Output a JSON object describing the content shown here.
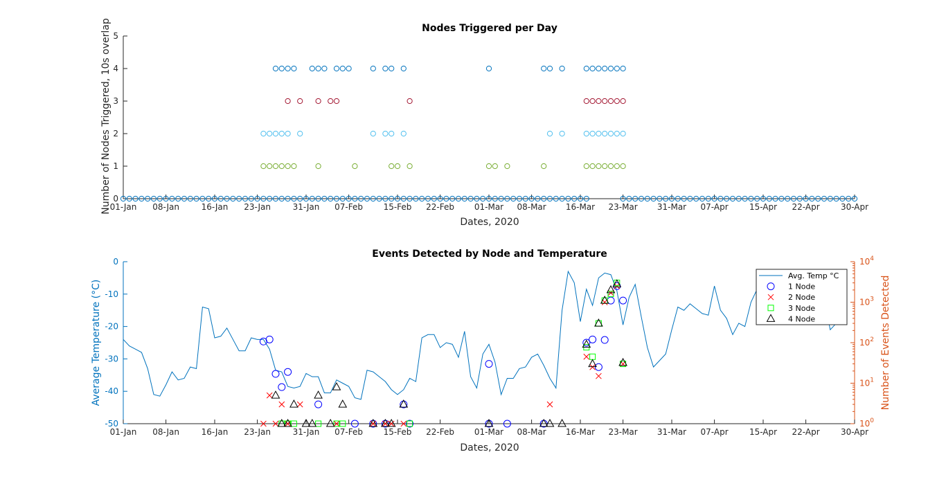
{
  "colors": {
    "axis": "#262626",
    "left_axis": "#0072BD",
    "right_axis": "#D95319",
    "n0": "#0072BD",
    "n1": "#77AC30",
    "n2": "#4DBEEE",
    "n3": "#A2142F",
    "n4": "#0072BD",
    "temp_line": "#0072BD",
    "node1": "#0000FF",
    "node2": "#FF0000",
    "node3": "#00FF00",
    "node4": "#000000"
  },
  "chart_data": [
    {
      "type": "scatter",
      "title": "Nodes Triggered per Day",
      "xlabel": "Dates, 2020",
      "ylabel": "Number of Nodes Triggered, 10s overlap",
      "xlim": [
        "2020-01-01",
        "2020-04-30"
      ],
      "ylim": [
        0,
        5
      ],
      "yticks": [
        "0",
        "1",
        "2",
        "3",
        "4",
        "5"
      ],
      "xticks": [
        {
          "date": "2020-01-01",
          "label": "01-Jan"
        },
        {
          "date": "2020-01-08",
          "label": "08-Jan"
        },
        {
          "date": "2020-01-16",
          "label": "16-Jan"
        },
        {
          "date": "2020-01-23",
          "label": "23-Jan"
        },
        {
          "date": "2020-01-31",
          "label": "31-Jan"
        },
        {
          "date": "2020-02-07",
          "label": "07-Feb"
        },
        {
          "date": "2020-02-15",
          "label": "15-Feb"
        },
        {
          "date": "2020-02-22",
          "label": "22-Feb"
        },
        {
          "date": "2020-03-01",
          "label": "01-Mar"
        },
        {
          "date": "2020-03-08",
          "label": "08-Mar"
        },
        {
          "date": "2020-03-16",
          "label": "16-Mar"
        },
        {
          "date": "2020-03-23",
          "label": "23-Mar"
        },
        {
          "date": "2020-03-31",
          "label": "31-Mar"
        },
        {
          "date": "2020-04-07",
          "label": "07-Apr"
        },
        {
          "date": "2020-04-15",
          "label": "15-Apr"
        },
        {
          "date": "2020-04-22",
          "label": "22-Apr"
        },
        {
          "date": "2020-04-30",
          "label": "30-Apr"
        }
      ],
      "series": [
        {
          "value": 4,
          "color_key": "n4",
          "dates": [
            "2020-01-26",
            "2020-01-27",
            "2020-01-28",
            "2020-01-29",
            "2020-02-01",
            "2020-02-02",
            "2020-02-03",
            "2020-02-05",
            "2020-02-06",
            "2020-02-07",
            "2020-02-11",
            "2020-02-13",
            "2020-02-14",
            "2020-02-16",
            "2020-03-01",
            "2020-03-10",
            "2020-03-11",
            "2020-03-13",
            "2020-03-17",
            "2020-03-18",
            "2020-03-19",
            "2020-03-20",
            "2020-03-21",
            "2020-03-22",
            "2020-03-23"
          ]
        },
        {
          "value": 3,
          "color_key": "n3",
          "dates": [
            "2020-01-28",
            "2020-01-30",
            "2020-02-02",
            "2020-02-04",
            "2020-02-05",
            "2020-02-17",
            "2020-03-17",
            "2020-03-18",
            "2020-03-19",
            "2020-03-20",
            "2020-03-21",
            "2020-03-22",
            "2020-03-23"
          ]
        },
        {
          "value": 2,
          "color_key": "n2",
          "dates": [
            "2020-01-24",
            "2020-01-25",
            "2020-01-26",
            "2020-01-27",
            "2020-01-28",
            "2020-01-30",
            "2020-02-11",
            "2020-02-13",
            "2020-02-14",
            "2020-02-16",
            "2020-03-11",
            "2020-03-13",
            "2020-03-17",
            "2020-03-18",
            "2020-03-19",
            "2020-03-20",
            "2020-03-21",
            "2020-03-22",
            "2020-03-23"
          ]
        },
        {
          "value": 1,
          "color_key": "n1",
          "dates": [
            "2020-01-24",
            "2020-01-25",
            "2020-01-26",
            "2020-01-27",
            "2020-01-28",
            "2020-01-29",
            "2020-02-02",
            "2020-02-08",
            "2020-02-14",
            "2020-02-15",
            "2020-02-17",
            "2020-03-01",
            "2020-03-02",
            "2020-03-04",
            "2020-03-10",
            "2020-03-17",
            "2020-03-18",
            "2020-03-19",
            "2020-03-20",
            "2020-03-21",
            "2020-03-22",
            "2020-03-23"
          ]
        }
      ],
      "zero_gap": [
        "2020-03-17",
        "2020-03-23"
      ]
    },
    {
      "type": "line",
      "title": "Events Detected by Node and Temperature",
      "xlabel": "Dates, 2020",
      "ylabel_left": "Average Temperature (°C)",
      "ylabel_right": "Number of Events Detected",
      "ylim_left": [
        -50,
        0
      ],
      "ylim_right": [
        1,
        10000
      ],
      "yscale_right": "log",
      "yticks_left": [
        "0",
        "-10",
        "-20",
        "-30",
        "-40",
        "-50"
      ],
      "yticks_right": [
        {
          "base": "10",
          "exp": "0"
        },
        {
          "base": "10",
          "exp": "1"
        },
        {
          "base": "10",
          "exp": "2"
        },
        {
          "base": "10",
          "exp": "3"
        },
        {
          "base": "10",
          "exp": "4"
        }
      ],
      "legend": {
        "position": "top-right",
        "entries": [
          {
            "label": "Avg. Temp °C",
            "marker": "line",
            "color_key": "temp_line"
          },
          {
            "label": "1 Node",
            "marker": "circle",
            "color_key": "node1"
          },
          {
            "label": "2 Node",
            "marker": "x",
            "color_key": "node2"
          },
          {
            "label": "3 Node",
            "marker": "square",
            "color_key": "node3"
          },
          {
            "label": "4 Node",
            "marker": "triangle",
            "color_key": "node4"
          }
        ]
      },
      "temperature": [
        -24,
        -26,
        -27,
        -28,
        -33,
        -41,
        -41.5,
        -38,
        -34,
        -36.5,
        -36,
        -32.5,
        -33,
        -14,
        -14.5,
        -23.5,
        -23,
        -20.5,
        -24,
        -27.5,
        -27.5,
        -23.5,
        -24,
        -24,
        -27,
        -33.5,
        -34,
        -38.5,
        -39,
        -38.5,
        -34.5,
        -35.5,
        -35.5,
        -40.5,
        -40.5,
        -36.5,
        -37.5,
        -38.5,
        -42,
        -42.5,
        -33.5,
        -34,
        -35.5,
        -37,
        -39.5,
        -41,
        -39.5,
        -36,
        -37,
        -23.5,
        -22.5,
        -22.5,
        -26.5,
        -25,
        -25.5,
        -29.5,
        -21.5,
        -35.5,
        -39,
        -28.5,
        -25.5,
        -31,
        -41,
        -36,
        -36,
        -33,
        -32.5,
        -29.5,
        -28.5,
        -32,
        -36,
        -39,
        -15,
        -3,
        -6.5,
        -18.5,
        -8.5,
        -13.5,
        -5,
        -3.5,
        -4,
        -9,
        -19.5,
        -11,
        -7,
        -17,
        -26.5,
        -32.5,
        -30.5,
        -28.5,
        -21,
        -14,
        -15,
        -13,
        -14.5,
        -16,
        -16.5,
        -7.5,
        -15,
        -17.5,
        -22.5,
        -19,
        -20,
        -12.5,
        -8.5,
        -7,
        -6,
        -5.5,
        -4.5,
        -4.5,
        -4,
        -5,
        -11.5,
        -15,
        -8,
        -11,
        -21,
        -19
      ],
      "events": {
        "node1": [
          [
            "2020-01-24",
            107
          ],
          [
            "2020-01-25",
            120
          ],
          [
            "2020-01-26",
            17
          ],
          [
            "2020-01-27",
            8
          ],
          [
            "2020-01-28",
            19
          ],
          [
            "2020-02-02",
            3
          ],
          [
            "2020-02-16",
            3
          ],
          [
            "2020-02-17",
            1
          ],
          [
            "2020-02-08",
            1
          ],
          [
            "2020-02-11",
            1
          ],
          [
            "2020-02-13",
            1
          ],
          [
            "2020-03-01",
            1
          ],
          [
            "2020-03-04",
            1
          ],
          [
            "2020-03-01",
            30
          ],
          [
            "2020-03-17",
            100
          ],
          [
            "2020-03-18",
            120
          ],
          [
            "2020-03-19",
            25
          ],
          [
            "2020-03-20",
            117
          ],
          [
            "2020-03-21",
            1100
          ],
          [
            "2020-03-22",
            2500
          ],
          [
            "2020-03-23",
            1100
          ],
          [
            "2020-03-10",
            1
          ]
        ],
        "node2": [
          [
            "2020-01-24",
            1
          ],
          [
            "2020-01-25",
            5
          ],
          [
            "2020-01-26",
            1
          ],
          [
            "2020-01-27",
            3
          ],
          [
            "2020-01-28",
            1
          ],
          [
            "2020-01-30",
            3
          ],
          [
            "2020-02-05",
            1
          ],
          [
            "2020-02-11",
            1
          ],
          [
            "2020-02-13",
            1
          ],
          [
            "2020-02-14",
            1
          ],
          [
            "2020-02-16",
            1
          ],
          [
            "2020-03-11",
            3
          ],
          [
            "2020-03-17",
            45
          ],
          [
            "2020-03-18",
            25
          ],
          [
            "2020-03-19",
            15
          ],
          [
            "2020-03-20",
            1000
          ],
          [
            "2020-03-21",
            1700
          ],
          [
            "2020-03-22",
            2500
          ],
          [
            "2020-03-23",
            30
          ]
        ],
        "node3": [
          [
            "2020-01-27",
            1
          ],
          [
            "2020-01-28",
            1
          ],
          [
            "2020-01-29",
            1
          ],
          [
            "2020-02-02",
            1
          ],
          [
            "2020-02-05",
            1
          ],
          [
            "2020-02-06",
            1
          ],
          [
            "2020-02-17",
            1
          ],
          [
            "2020-03-17",
            77
          ],
          [
            "2020-03-18",
            45
          ],
          [
            "2020-03-19",
            300
          ],
          [
            "2020-03-20",
            1100
          ],
          [
            "2020-03-21",
            1600
          ],
          [
            "2020-03-22",
            3000
          ],
          [
            "2020-03-23",
            30
          ]
        ],
        "node4": [
          [
            "2020-01-26",
            5
          ],
          [
            "2020-01-27",
            1
          ],
          [
            "2020-01-28",
            1
          ],
          [
            "2020-01-29",
            3
          ],
          [
            "2020-01-31",
            1
          ],
          [
            "2020-02-01",
            1
          ],
          [
            "2020-02-02",
            5
          ],
          [
            "2020-02-04",
            1
          ],
          [
            "2020-02-05",
            8
          ],
          [
            "2020-02-06",
            3
          ],
          [
            "2020-02-11",
            1
          ],
          [
            "2020-02-13",
            1
          ],
          [
            "2020-02-14",
            1
          ],
          [
            "2020-02-16",
            3
          ],
          [
            "2020-03-01",
            1
          ],
          [
            "2020-03-10",
            1
          ],
          [
            "2020-03-11",
            1
          ],
          [
            "2020-03-13",
            1
          ],
          [
            "2020-03-17",
            90
          ],
          [
            "2020-03-18",
            30
          ],
          [
            "2020-03-19",
            300
          ],
          [
            "2020-03-20",
            1100
          ],
          [
            "2020-03-21",
            2000
          ],
          [
            "2020-03-22",
            2800
          ],
          [
            "2020-03-23",
            32
          ]
        ]
      }
    }
  ]
}
